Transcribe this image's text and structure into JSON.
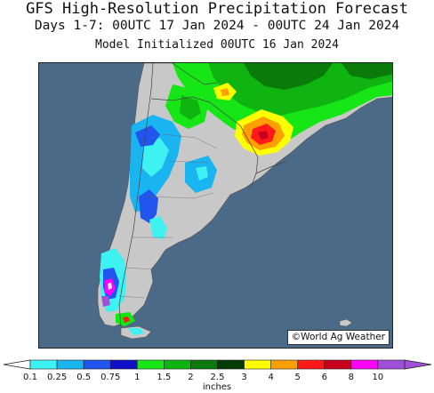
{
  "header": {
    "title": "GFS High-Resolution Precipitation Forecast",
    "subtitle": "Days 1-7: 00UTC 17 Jan 2024 - 00UTC 24 Jan 2024",
    "initialized": "Model Initialized 00UTC 16 Jan 2024"
  },
  "map": {
    "credit": "©World Ag Weather",
    "colors": {
      "ocean": "#4a6a87",
      "land": "#c8c8c8",
      "border": "#555555"
    }
  },
  "legend": {
    "units": "inches",
    "breaks": [
      "0.1",
      "0.25",
      "0.5",
      "0.75",
      "1",
      "1.5",
      "2",
      "2.5",
      "3",
      "4",
      "5",
      "6",
      "8",
      "10"
    ],
    "colors": [
      "#3ff2f2",
      "#1ab4f0",
      "#2255ee",
      "#1010c8",
      "#16e616",
      "#10b410",
      "#0a7a0a",
      "#053c05",
      "#ffff00",
      "#ffa000",
      "#ff1a1a",
      "#c8001e",
      "#ff00ff",
      "#a050d8"
    ]
  }
}
